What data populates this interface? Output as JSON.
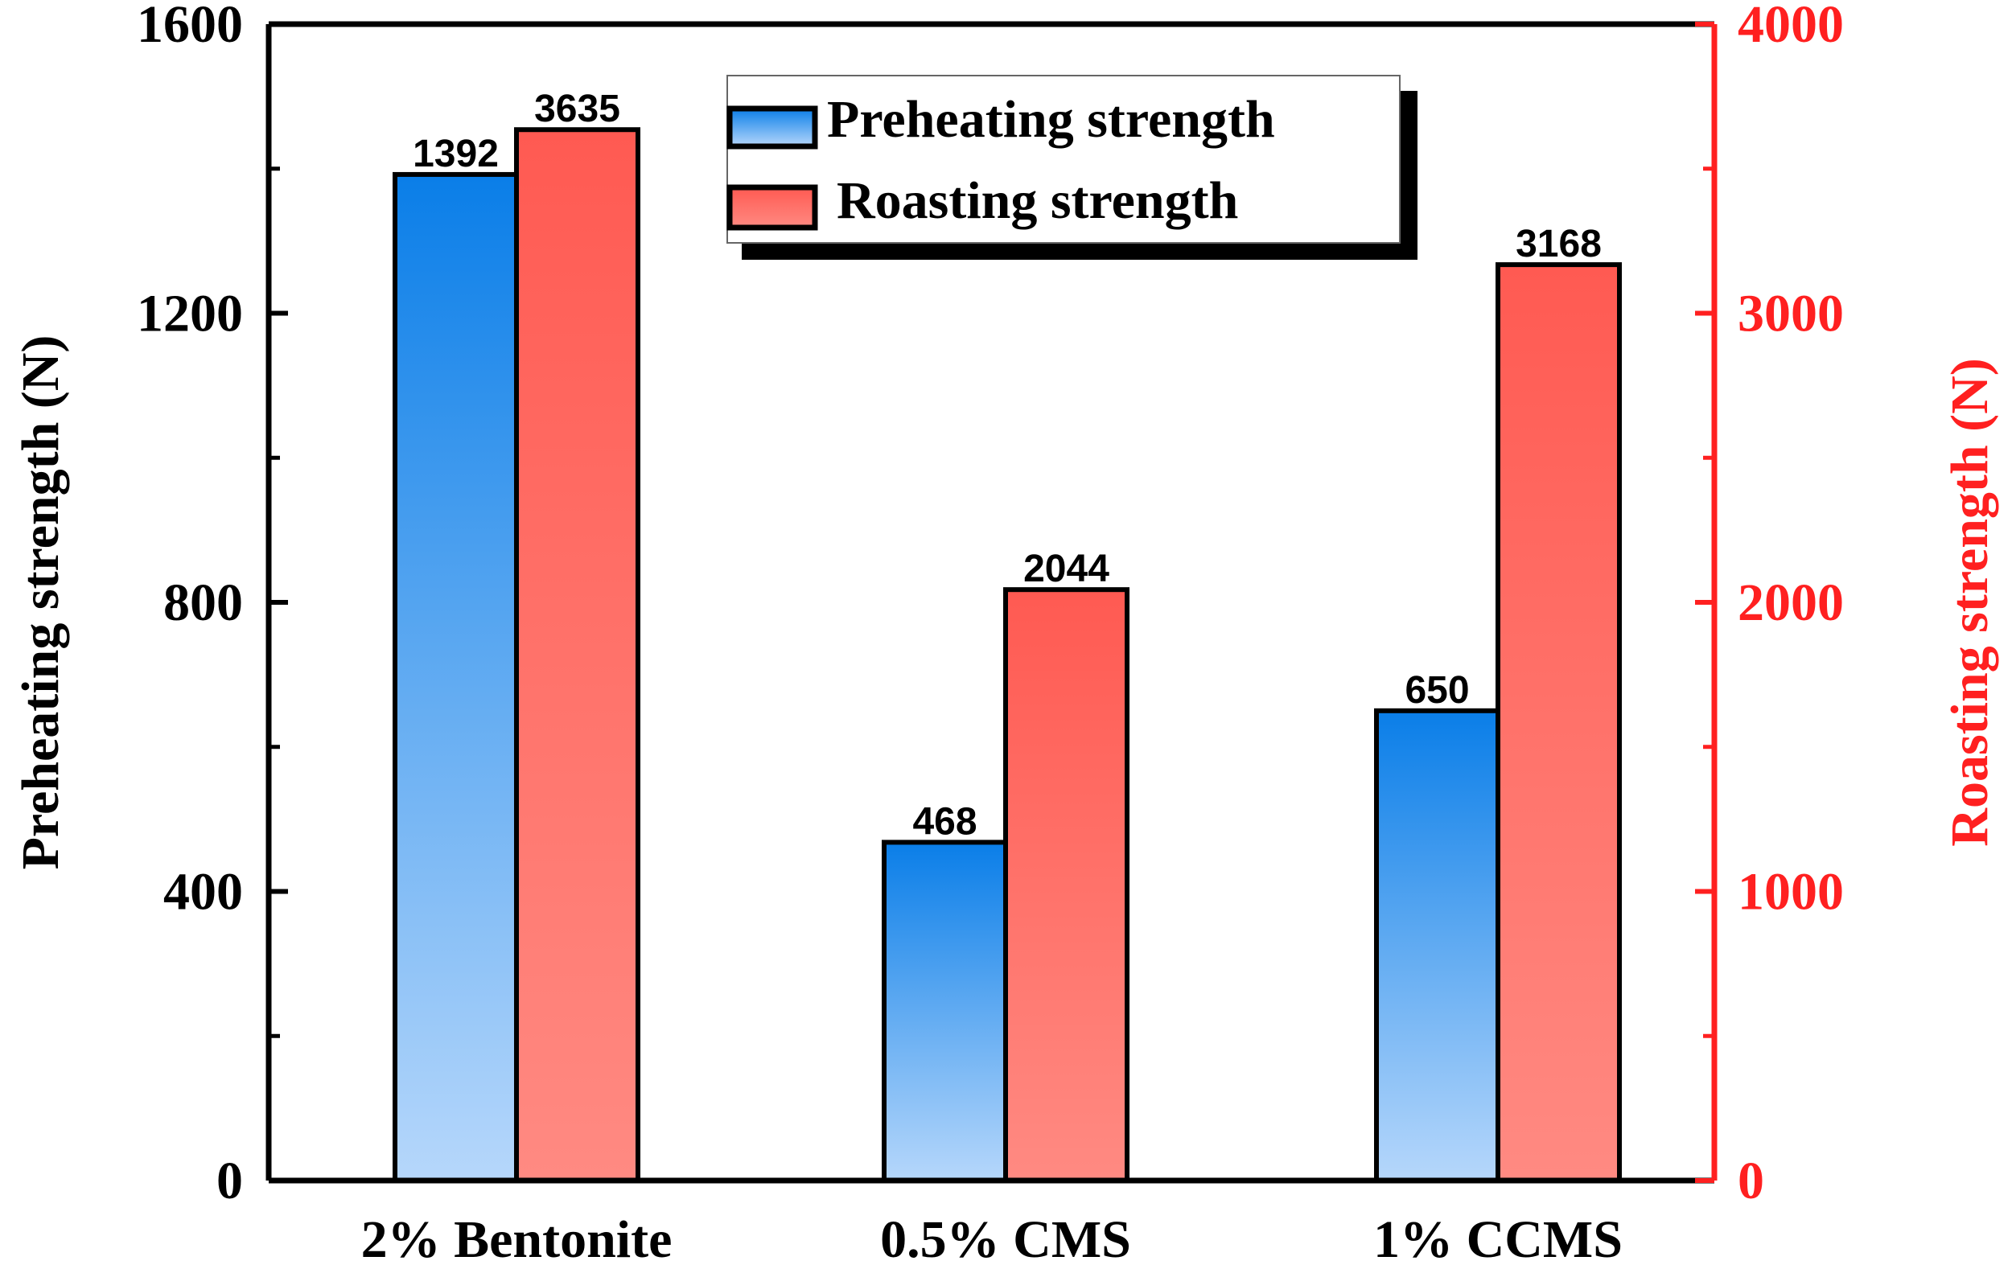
{
  "chart_data": {
    "type": "bar",
    "categories": [
      "2% Bentonite",
      "0.5% CMS",
      "1% CCMS"
    ],
    "series": [
      {
        "name": "Preheating strength",
        "axis": "left",
        "values": [
          1392,
          468,
          650
        ]
      },
      {
        "name": "Roasting strength",
        "axis": "right",
        "values": [
          3635,
          2044,
          3168
        ]
      }
    ],
    "data_labels": [
      [
        "1392",
        "468",
        "650"
      ],
      [
        "3635",
        "2044",
        "3168"
      ]
    ],
    "ylabel": "Preheating strength (N)",
    "ylabel_right": "Roasting strength (N)",
    "ylim": [
      0,
      1600
    ],
    "ylim_right": [
      0,
      4000
    ],
    "yticks": [
      "0",
      "400",
      "800",
      "1200",
      "1600"
    ],
    "yticks_right": [
      "0",
      "1000",
      "2000",
      "3000",
      "4000"
    ],
    "legend": [
      "Preheating strength",
      "Roasting strength"
    ],
    "legend_position": "top-center",
    "grid": false
  },
  "colors": {
    "preheating_top": "#0a7ee8",
    "preheating_bottom": "#b6d7fb",
    "roasting_top": "#ff5a52",
    "roasting_bottom": "#ff8a82",
    "right_axis": "#ff2020",
    "axis": "#000000"
  }
}
